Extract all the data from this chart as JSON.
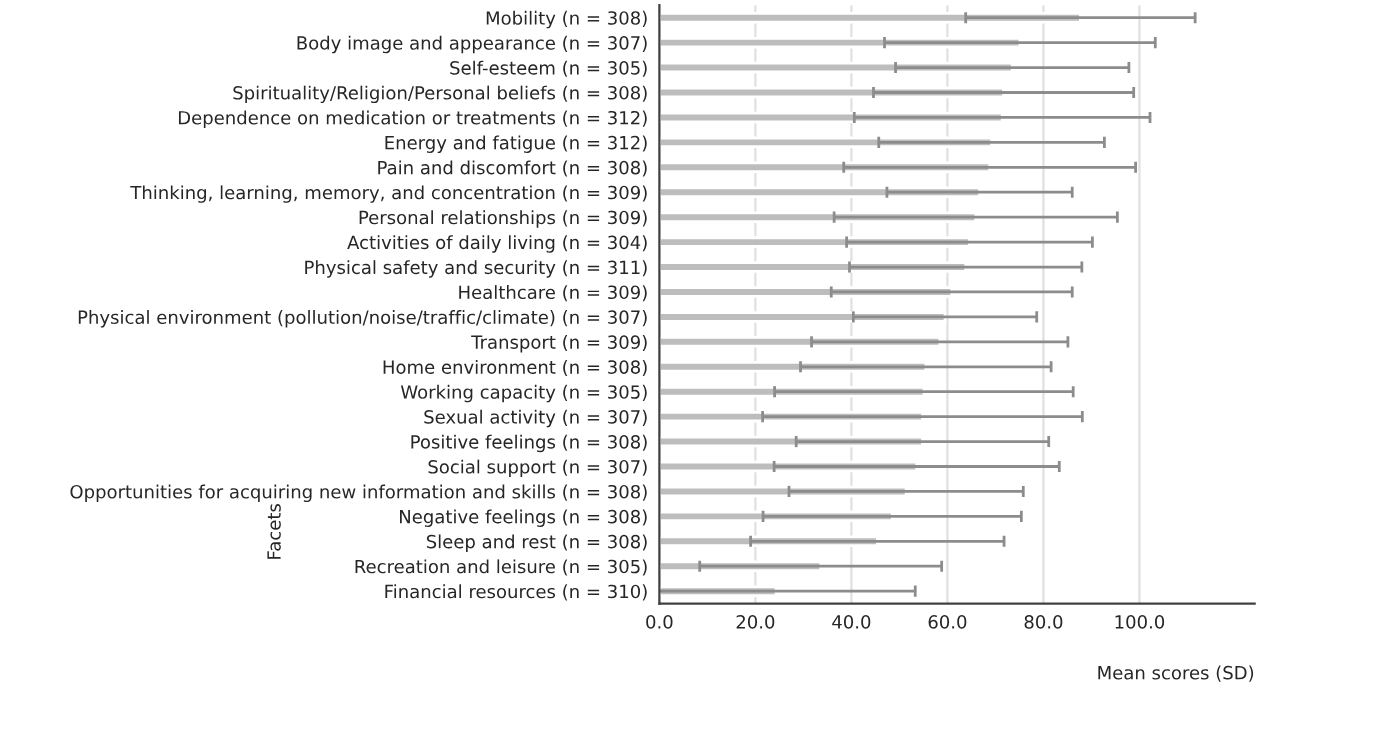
{
  "chart_data": {
    "type": "bar",
    "orientation": "horizontal",
    "xlabel": "Mean scores (SD)",
    "ylabel": "Facets",
    "categories": [
      "Mobility (n = 308)",
      "Body image and appearance (n = 307)",
      "Self-esteem (n = 305)",
      "Spirituality/Religion/Personal beliefs (n = 308)",
      "Dependence on medication or treatments (n = 312)",
      "Energy and fatigue (n = 312)",
      "Pain and discomfort (n = 308)",
      "Thinking, learning, memory, and concentration (n = 309)",
      "Personal relationships (n = 309)",
      "Activities of daily living (n = 304)",
      "Physical safety and security (n = 311)",
      "Healthcare (n = 309)",
      "Physical environment (pollution/noise/traffic/climate) (n = 307)",
      "Transport (n = 309)",
      "Home environment (n = 308)",
      "Working capacity (n = 305)",
      "Sexual activity (n = 307)",
      "Positive feelings (n = 308)",
      "Social support (n = 307)",
      "Opportunities for acquiring new information and skills (n = 308)",
      "Negative feelings (n = 308)",
      "Sleep and rest (n = 308)",
      "Recreation and leisure (n = 305)",
      "Financial resources (n = 310)"
    ],
    "values": [
      87.7,
      75.1,
      73.5,
      71.7,
      71.4,
      69.2,
      68.8,
      66.7,
      65.9,
      64.6,
      63.8,
      60.9,
      59.5,
      58.4,
      55.5,
      55.1,
      54.8,
      54.8,
      53.6,
      51.4,
      48.5,
      45.4,
      33.6,
      24.3
    ],
    "errors": [
      23.9,
      28.2,
      24.3,
      27.1,
      30.8,
      23.5,
      30.4,
      19.3,
      29.5,
      25.6,
      24.2,
      25.1,
      19.1,
      26.7,
      26.1,
      31.1,
      33.3,
      26.3,
      29.7,
      24.4,
      26.9,
      26.4,
      25.2,
      29.0
    ],
    "color": "#bdbdbd",
    "xlim": [
      0,
      124
    ],
    "xticks": [
      {
        "value": 0,
        "label": "0.0"
      },
      {
        "value": 20,
        "label": "20.0"
      },
      {
        "value": 40,
        "label": "40.0"
      },
      {
        "value": 60,
        "label": "60.0"
      },
      {
        "value": 80,
        "label": "80.0"
      },
      {
        "value": 100,
        "label": "100.0"
      }
    ],
    "grid": "x"
  }
}
